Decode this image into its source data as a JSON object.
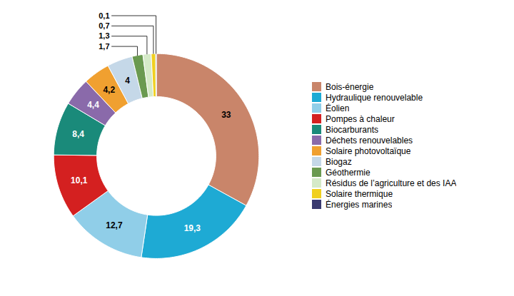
{
  "chart_data": {
    "type": "donut",
    "categories": [
      "Bois-énergie",
      "Hydraulique renouvelable",
      "Éolien",
      "Pompes à chaleur",
      "Biocarburants",
      "Déchets renouvelables",
      "Solaire photovoltaïque",
      "Biogaz",
      "Géothermie",
      "Résidus de l’agriculture et des IAA",
      "Solaire thermique",
      "Énergies marines"
    ],
    "values": [
      33,
      19.3,
      12.7,
      10.1,
      8.4,
      4.4,
      4.2,
      4.0,
      1.7,
      1.3,
      0.7,
      0.1
    ],
    "value_labels": [
      "33",
      "19,3",
      "12,7",
      "10,1",
      "8,4",
      "4,4",
      "4,2",
      "4",
      "1,7",
      "1,3",
      "0,7",
      "0,1"
    ],
    "colors": [
      "#C9856A",
      "#1EAAD4",
      "#90CEE8",
      "#D42020",
      "#1A8A7A",
      "#8A6AAA",
      "#F0A030",
      "#C5D8E8",
      "#6A9A50",
      "#D5EAC8",
      "#F0D020",
      "#3A3A70"
    ],
    "data_labels": true,
    "legend": "right"
  }
}
